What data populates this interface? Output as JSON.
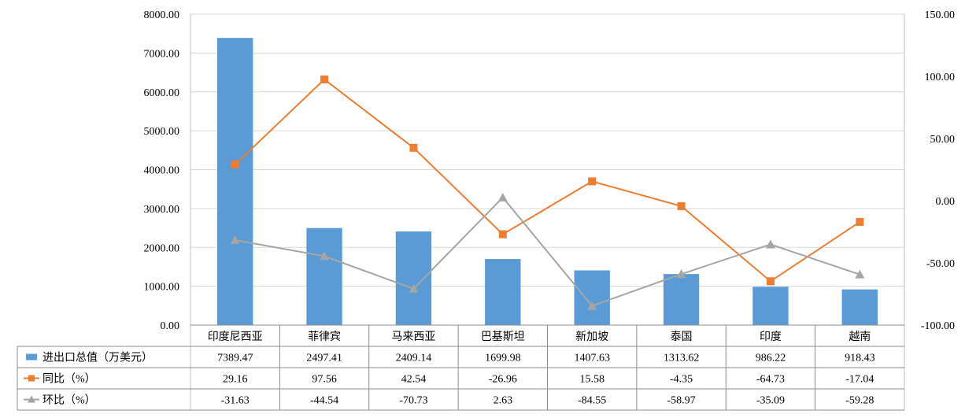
{
  "chart_data": {
    "type": "bar",
    "categories": [
      "印度尼西亚",
      "菲律宾",
      "马来西亚",
      "巴基斯坦",
      "新加坡",
      "泰国",
      "印度",
      "越南"
    ],
    "series": [
      {
        "name": "进出口总值（万美元）",
        "kind": "bar",
        "axis": "left",
        "color": "#5B9BD5",
        "values": [
          "7389.47",
          "2497.41",
          "2409.14",
          "1699.98",
          "1407.63",
          "1313.62",
          "986.22",
          "918.43"
        ]
      },
      {
        "name": "同比（%）",
        "kind": "line",
        "marker": "square",
        "axis": "right",
        "color": "#ED7D31",
        "values": [
          "29.16",
          "97.56",
          "42.54",
          "-26.96",
          "15.58",
          "-4.35",
          "-64.73",
          "-17.04"
        ]
      },
      {
        "name": "环比（%）",
        "kind": "line",
        "marker": "triangle",
        "axis": "right",
        "color": "#A5A5A5",
        "values": [
          "-31.63",
          "-44.54",
          "-70.73",
          "2.63",
          "-84.55",
          "-58.97",
          "-35.09",
          "-59.28"
        ]
      }
    ],
    "y_left": {
      "lim": [
        0,
        8000
      ],
      "ticks": [
        "0.00",
        "1000.00",
        "2000.00",
        "3000.00",
        "4000.00",
        "5000.00",
        "6000.00",
        "7000.00",
        "8000.00"
      ]
    },
    "y_right": {
      "lim": [
        -100,
        150
      ],
      "ticks": [
        "-100.00",
        "-50.00",
        "0.00",
        "50.00",
        "100.00",
        "150.00"
      ]
    },
    "grid": true,
    "legend": "data-table"
  }
}
